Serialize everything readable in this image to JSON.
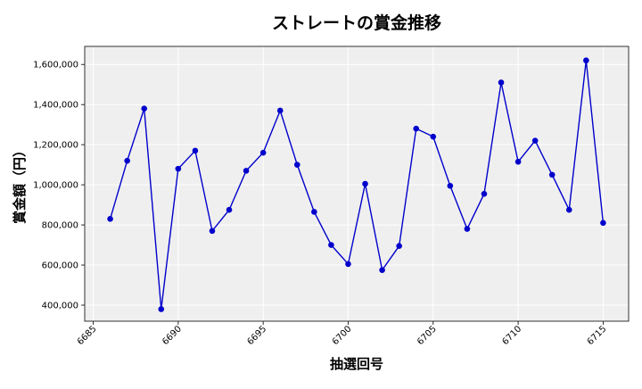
{
  "chart_data": {
    "type": "line",
    "title": "ストレートの賞金推移",
    "xlabel": "抽選回号",
    "ylabel": "賞金額（円）",
    "xlim": [
      6684.5,
      6716.5
    ],
    "ylim": [
      320000,
      1690000
    ],
    "xticks": [
      6685,
      6690,
      6695,
      6700,
      6705,
      6710,
      6715
    ],
    "xtick_labels": [
      "6685",
      "6690",
      "6695",
      "6700",
      "6705",
      "6710",
      "6715"
    ],
    "yticks": [
      400000,
      600000,
      800000,
      1000000,
      1200000,
      1400000,
      1600000
    ],
    "ytick_labels": [
      "400,000",
      "600,000",
      "800,000",
      "1,000,000",
      "1,200,000",
      "1,400,000",
      "1,600,000"
    ],
    "grid": true,
    "line_color": "#0000cc",
    "marker_color": "#0000cc",
    "plot_background": "#efefef",
    "series": [
      {
        "x": [
          6686,
          6687,
          6688,
          6689,
          6690,
          6691,
          6692,
          6693,
          6694,
          6695,
          6696,
          6697,
          6698,
          6699,
          6700,
          6701,
          6702,
          6703,
          6704,
          6705,
          6706,
          6707,
          6708,
          6709,
          6710,
          6711,
          6712,
          6713,
          6714,
          6715
        ],
        "values": [
          830000,
          1120000,
          1380000,
          380000,
          1080000,
          1170000,
          770000,
          875000,
          1070000,
          1160000,
          1370000,
          1100000,
          865000,
          700000,
          605000,
          1005000,
          575000,
          695000,
          1280000,
          1240000,
          995000,
          780000,
          955000,
          1510000,
          1115000,
          1220000,
          1050000,
          875000,
          1620000,
          810000
        ]
      }
    ]
  }
}
